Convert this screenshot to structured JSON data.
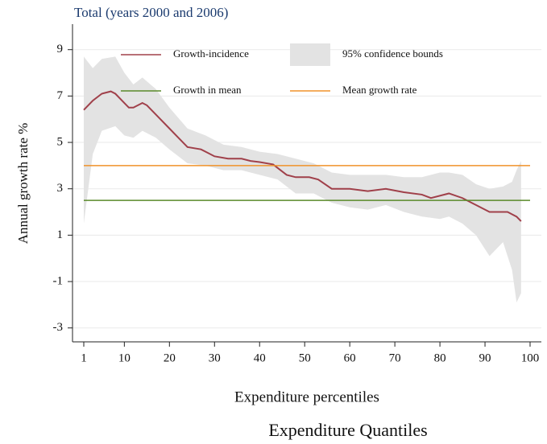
{
  "chart_data": {
    "type": "growth-incidence",
    "title": "Total (years 2000 and 2006)",
    "y_label": "Annual growth rate %",
    "x_label": "Expenditure percentiles",
    "caption": "Expenditure Quantiles",
    "xlim": [
      -1.5,
      102.5
    ],
    "ylim": [
      -3.6,
      10.1
    ],
    "xticks": [
      1,
      10,
      20,
      30,
      40,
      50,
      60,
      70,
      80,
      90,
      100
    ],
    "yticks": [
      -3,
      -1,
      1,
      3,
      5,
      7,
      9
    ],
    "grid": true,
    "series": [
      {
        "name": "Growth-incidence",
        "kind": "line",
        "color": "#a0404a",
        "x": [
          1,
          3,
          5,
          7,
          8,
          10,
          11,
          12,
          14,
          15,
          17,
          20,
          22,
          24,
          27,
          30,
          33,
          36,
          38,
          40,
          43,
          46,
          48,
          51,
          53,
          56,
          60,
          64,
          68,
          72,
          76,
          78,
          82,
          85,
          88,
          91,
          95,
          97,
          98
        ],
        "values": [
          6.4,
          6.8,
          7.1,
          7.2,
          7.1,
          6.7,
          6.5,
          6.5,
          6.7,
          6.6,
          6.2,
          5.6,
          5.2,
          4.8,
          4.7,
          4.4,
          4.3,
          4.3,
          4.2,
          4.15,
          4.05,
          3.6,
          3.5,
          3.5,
          3.4,
          3.0,
          3.0,
          2.9,
          3.0,
          2.85,
          2.75,
          2.6,
          2.8,
          2.6,
          2.3,
          2.0,
          2.0,
          1.8,
          1.6
        ]
      },
      {
        "name": "95% confidence bounds",
        "kind": "band",
        "color": "#e3e3e3",
        "x": [
          1,
          3,
          5,
          8,
          10,
          12,
          14,
          17,
          20,
          24,
          28,
          32,
          36,
          40,
          44,
          48,
          52,
          56,
          60,
          64,
          68,
          72,
          76,
          80,
          82,
          85,
          88,
          91,
          94,
          96,
          97,
          98
        ],
        "upper": [
          8.7,
          8.2,
          8.6,
          8.7,
          8.0,
          7.5,
          7.8,
          7.3,
          6.5,
          5.6,
          5.3,
          4.9,
          4.8,
          4.6,
          4.5,
          4.3,
          4.1,
          3.7,
          3.6,
          3.6,
          3.6,
          3.5,
          3.5,
          3.7,
          3.7,
          3.6,
          3.2,
          3.0,
          3.1,
          3.3,
          3.8,
          4.2
        ],
        "lower": [
          1.5,
          4.5,
          5.5,
          5.7,
          5.3,
          5.2,
          5.5,
          5.2,
          4.7,
          4.1,
          4.0,
          3.8,
          3.8,
          3.6,
          3.4,
          2.8,
          2.8,
          2.4,
          2.2,
          2.1,
          2.3,
          2.0,
          1.8,
          1.7,
          1.8,
          1.5,
          1.0,
          0.1,
          0.7,
          -0.5,
          -1.9,
          -1.5
        ]
      },
      {
        "name": "Growth in mean",
        "kind": "line",
        "color": "#5a8a2a",
        "x": [
          1,
          100
        ],
        "values": [
          2.5,
          2.5
        ]
      },
      {
        "name": "Mean growth rate",
        "kind": "line",
        "color": "#f0922a",
        "x": [
          1,
          100
        ],
        "values": [
          4.0,
          4.0
        ]
      }
    ]
  }
}
